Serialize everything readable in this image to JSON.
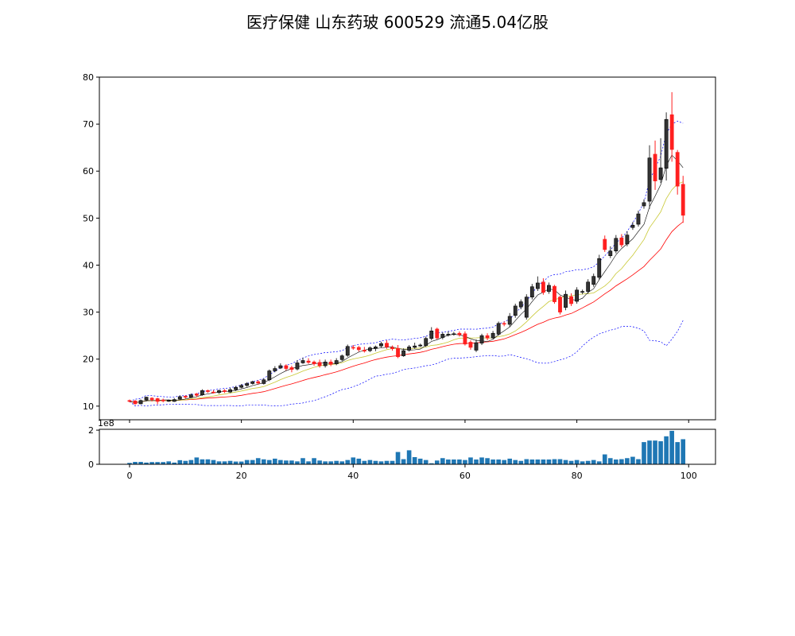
{
  "title": "医疗保健 山东药玻 600529 流通5.04亿股",
  "chart_data": [
    {
      "type": "candlestick",
      "title": "医疗保健 山东药玻 600529 流通5.04亿股",
      "xlim": [
        -5.4,
        104.8
      ],
      "ylim": [
        7.1,
        80
      ],
      "yticks": [
        10,
        20,
        30,
        40,
        50,
        60,
        70,
        80
      ],
      "xticks": [
        0,
        20,
        40,
        60,
        80,
        100
      ],
      "colors": {
        "up": "#333333",
        "down": "#ff2020",
        "ma5": "#000000",
        "ma10": "#c8c832",
        "ma20": "#ff0000",
        "boll": "#0000ff"
      },
      "open": [
        11.2,
        11.1,
        10.5,
        11.3,
        11.7,
        11.6,
        11.3,
        11.1,
        11.0,
        11.5,
        12.1,
        11.9,
        12.6,
        12.4,
        13.3,
        13.0,
        12.9,
        13.3,
        13.0,
        13.5,
        14.0,
        14.4,
        14.8,
        15.2,
        14.8,
        15.6,
        17.5,
        18.1,
        18.6,
        18.2,
        17.9,
        19.2,
        19.6,
        19.4,
        19.3,
        18.6,
        19.4,
        19.0,
        19.9,
        20.8,
        22.5,
        22.5,
        21.9,
        21.8,
        22.3,
        22.8,
        23.4,
        22.5,
        22.3,
        20.7,
        21.9,
        22.5,
        22.8,
        22.9,
        24.4,
        26.4,
        24.6,
        25.2,
        25.3,
        25.5,
        25.4,
        23.6,
        21.9,
        23.4,
        25.0,
        24.5,
        25.3,
        27.6,
        27.4,
        29.3,
        31.1,
        28.9,
        33.2,
        35.0,
        36.4,
        34.4,
        35.5,
        33.2,
        31.0,
        33.3,
        32.3,
        34.3,
        34.4,
        35.9,
        37.4,
        45.5,
        42.0,
        43.0,
        45.8,
        44.5,
        48.0,
        48.7,
        52.6,
        53.6,
        63.6,
        58.2,
        60.6,
        72.0,
        64.0,
        57.2
      ],
      "high": [
        11.4,
        11.3,
        11.4,
        12.0,
        11.9,
        11.8,
        11.6,
        11.4,
        11.7,
        12.3,
        12.3,
        12.7,
        12.8,
        13.6,
        13.5,
        13.4,
        13.5,
        13.6,
        13.9,
        14.3,
        14.7,
        15.1,
        15.4,
        15.5,
        15.9,
        17.8,
        18.5,
        19.1,
        18.9,
        18.6,
        19.8,
        20.3,
        20.2,
        19.7,
        19.9,
        19.9,
        19.9,
        20.2,
        21.0,
        23.1,
        23.0,
        22.8,
        22.6,
        22.7,
        22.9,
        23.7,
        24.0,
        22.9,
        23.0,
        22.3,
        23.0,
        23.5,
        23.3,
        24.8,
        26.8,
        26.7,
        25.7,
        25.9,
        25.8,
        25.9,
        25.9,
        24.0,
        24.2,
        25.4,
        25.5,
        26.0,
        28.0,
        28.0,
        29.8,
        31.8,
        32.7,
        33.8,
        36.0,
        37.6,
        37.2,
        36.3,
        35.8,
        33.5,
        34.6,
        34.0,
        35.3,
        34.8,
        37.0,
        38.2,
        42.2,
        46.3,
        44.0,
        46.4,
        46.6,
        47.2,
        49.2,
        51.6,
        54.0,
        65.5,
        66.5,
        67.0,
        72.5,
        76.8,
        64.5,
        59.0
      ],
      "low": [
        10.8,
        10.3,
        10.4,
        11.0,
        11.0,
        10.4,
        10.8,
        10.9,
        10.9,
        11.3,
        11.6,
        11.8,
        11.9,
        12.2,
        12.8,
        12.7,
        12.6,
        12.8,
        12.8,
        13.2,
        13.8,
        14.1,
        14.6,
        14.6,
        14.6,
        15.3,
        17.2,
        17.9,
        17.6,
        17.2,
        17.6,
        19.0,
        19.0,
        18.6,
        18.2,
        18.2,
        18.5,
        18.7,
        19.6,
        20.5,
        22.0,
        21.6,
        21.4,
        21.5,
        21.7,
        22.4,
        22.2,
        21.8,
        20.2,
        20.5,
        21.6,
        22.2,
        22.6,
        22.6,
        24.0,
        24.2,
        24.2,
        24.8,
        25.0,
        24.8,
        22.9,
        22.0,
        21.5,
        23.0,
        24.0,
        24.3,
        25.0,
        27.0,
        26.9,
        28.8,
        30.6,
        28.4,
        32.7,
        34.5,
        33.7,
        33.9,
        31.8,
        29.5,
        30.4,
        31.3,
        31.8,
        33.8,
        33.9,
        35.4,
        36.9,
        42.8,
        41.5,
        42.5,
        43.8,
        44.0,
        47.5,
        48.2,
        52.0,
        52.0,
        56.0,
        57.5,
        58.0,
        62.0,
        55.0,
        49.0
      ],
      "close": [
        11.0,
        10.5,
        11.2,
        11.9,
        11.4,
        11.0,
        11.1,
        11.2,
        11.4,
        12.0,
        11.9,
        12.4,
        12.3,
        13.3,
        13.1,
        12.9,
        13.3,
        13.1,
        13.5,
        14.0,
        14.4,
        14.8,
        15.2,
        14.9,
        15.6,
        17.5,
        18.0,
        18.6,
        18.0,
        17.8,
        19.2,
        19.7,
        19.3,
        19.0,
        18.6,
        19.4,
        18.9,
        19.7,
        20.7,
        22.7,
        22.4,
        22.0,
        21.7,
        22.4,
        22.6,
        23.3,
        22.6,
        22.2,
        20.5,
        21.8,
        22.6,
        22.8,
        23.0,
        24.4,
        26.0,
        24.5,
        25.3,
        25.3,
        25.4,
        25.2,
        23.2,
        22.5,
        23.5,
        25.0,
        24.5,
        25.5,
        27.6,
        27.5,
        29.1,
        31.3,
        32.2,
        33.2,
        35.4,
        36.2,
        34.2,
        35.7,
        32.2,
        30.0,
        33.8,
        31.8,
        34.7,
        34.4,
        36.4,
        37.6,
        41.4,
        43.3,
        43.0,
        45.7,
        44.3,
        46.4,
        48.5,
        50.9,
        53.3,
        62.8,
        57.9,
        60.7,
        71.0,
        64.6,
        56.8,
        50.6
      ]
    },
    {
      "type": "bar",
      "ylabel_offset": "1e8",
      "xlim": [
        -5.4,
        104.8
      ],
      "ylim": [
        0,
        2.05
      ],
      "yticks": [
        0,
        2
      ],
      "xticks": [
        0,
        20,
        40,
        60,
        80,
        100
      ],
      "color": "#1f77b4",
      "values": [
        0.08,
        0.14,
        0.14,
        0.1,
        0.13,
        0.13,
        0.13,
        0.17,
        0.1,
        0.24,
        0.2,
        0.25,
        0.4,
        0.29,
        0.29,
        0.25,
        0.17,
        0.17,
        0.2,
        0.16,
        0.16,
        0.25,
        0.25,
        0.36,
        0.29,
        0.25,
        0.33,
        0.25,
        0.22,
        0.22,
        0.17,
        0.36,
        0.17,
        0.36,
        0.22,
        0.17,
        0.17,
        0.2,
        0.17,
        0.25,
        0.4,
        0.33,
        0.2,
        0.25,
        0.2,
        0.17,
        0.2,
        0.2,
        0.72,
        0.3,
        0.82,
        0.42,
        0.33,
        0.25,
        0.06,
        0.22,
        0.36,
        0.28,
        0.28,
        0.28,
        0.25,
        0.4,
        0.28,
        0.4,
        0.36,
        0.28,
        0.28,
        0.25,
        0.33,
        0.25,
        0.2,
        0.3,
        0.28,
        0.28,
        0.28,
        0.28,
        0.3,
        0.3,
        0.25,
        0.2,
        0.25,
        0.17,
        0.2,
        0.25,
        0.17,
        0.58,
        0.36,
        0.28,
        0.3,
        0.36,
        0.44,
        0.3,
        1.3,
        1.39,
        1.39,
        1.35,
        1.64,
        1.96,
        1.3,
        1.47
      ]
    }
  ]
}
